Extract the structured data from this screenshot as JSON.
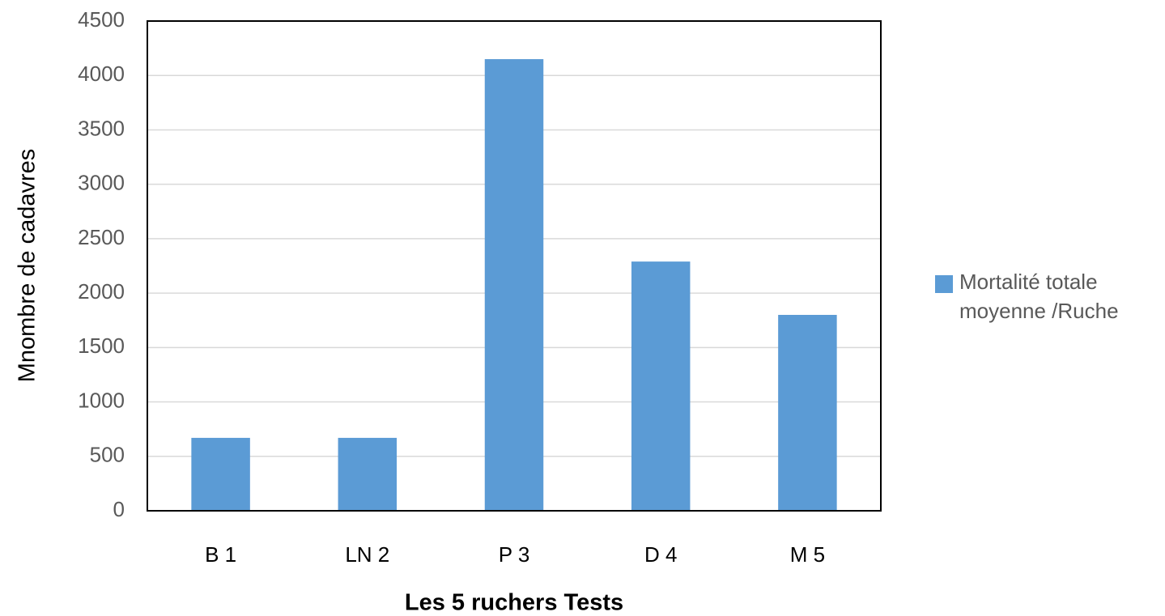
{
  "chart_data": {
    "type": "bar",
    "x_label": "Les 5 ruchers Tests",
    "y_label": "Mnombre de cadavres",
    "categories": [
      "B 1",
      "LN 2",
      "P 3",
      "D 4",
      "M 5"
    ],
    "series": [
      {
        "name": "Mortalité totale moyenne /Ruche",
        "color": "#5b9bd5",
        "values": [
          670,
          670,
          4150,
          2290,
          1800
        ]
      }
    ],
    "ylim": [
      0,
      4500
    ],
    "yticks": [
      0,
      500,
      1000,
      1500,
      2000,
      2500,
      3000,
      3500,
      4000,
      4500
    ],
    "grid": true,
    "legend": "right"
  }
}
